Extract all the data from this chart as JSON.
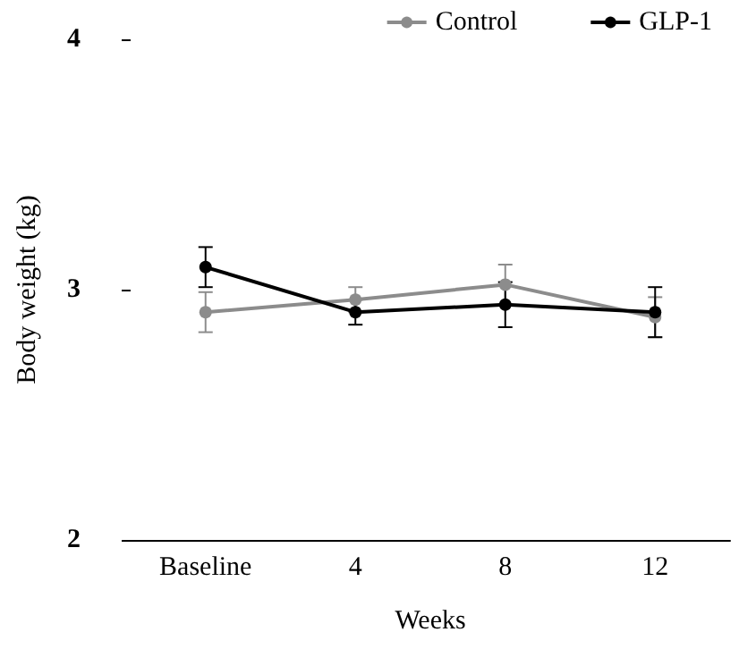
{
  "chart_data": {
    "type": "line",
    "xlabel": "Weeks",
    "ylabel": "Body weight (kg)",
    "categories": [
      "Baseline",
      "4",
      "8",
      "12"
    ],
    "series": [
      {
        "name": "Control",
        "color": "#8c8c8c",
        "values": [
          2.91,
          2.96,
          3.02,
          2.89
        ],
        "errors": [
          0.08,
          0.05,
          0.08,
          0.08
        ]
      },
      {
        "name": "GLP-1",
        "color": "#000000",
        "values": [
          3.09,
          2.91,
          2.94,
          2.91
        ],
        "errors": [
          0.08,
          0.05,
          0.09,
          0.1
        ]
      }
    ],
    "ylim": [
      2,
      4
    ],
    "yticks": [
      2,
      3,
      4
    ],
    "grid": false,
    "legend": "top right",
    "marker": "circle",
    "line_style": "solid"
  }
}
